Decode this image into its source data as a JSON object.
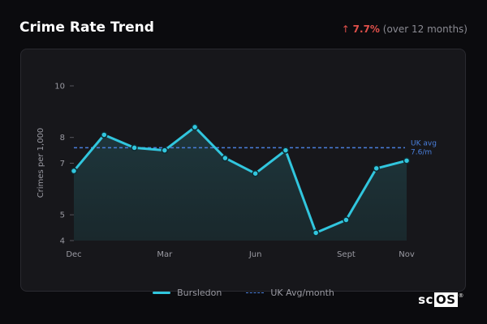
{
  "header": {
    "title": "Crime Rate Trend",
    "change_arrow": "↑",
    "change_pct": "7.7%",
    "change_period": "(over 12 months)"
  },
  "chart_data": {
    "type": "line",
    "ylabel": "Crimes per 1,000",
    "xlabel": "",
    "ylim": [
      4,
      10
    ],
    "y_ticks": [
      "10",
      "8",
      "7",
      "5",
      "4"
    ],
    "x_ticks": [
      "Dec",
      "Mar",
      "Jun",
      "Sept",
      "Nov"
    ],
    "series": [
      {
        "name": "Bursledon",
        "months": [
          "Dec",
          "Jan",
          "Feb",
          "Mar",
          "Apr",
          "May",
          "Jun",
          "Jul",
          "Aug",
          "Sept",
          "Oct",
          "Nov"
        ],
        "values": [
          6.7,
          8.1,
          7.6,
          7.5,
          8.4,
          7.2,
          6.6,
          7.5,
          4.3,
          4.8,
          6.8,
          7.1
        ]
      }
    ],
    "reference_line": {
      "name": "UK Avg/month",
      "value": 7.6,
      "label_line1": "UK avg",
      "label_line2": "7.6/m"
    },
    "grid": false,
    "legend_position": "bottom"
  },
  "legend": {
    "series_label": "Bursledon",
    "avg_label": "UK Avg/month"
  },
  "colors": {
    "line": "#31c6de",
    "avg": "#4a7fdc",
    "negative": "#e0504a"
  },
  "logo": {
    "prefix": "sc",
    "highlight": "OS",
    "mark": "®"
  }
}
